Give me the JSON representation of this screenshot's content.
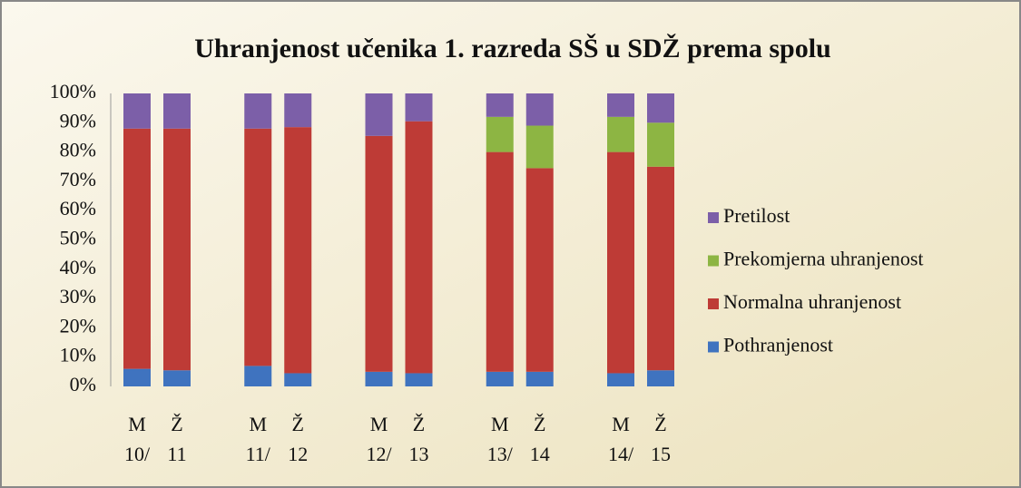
{
  "chart_data": {
    "type": "stacked_bar",
    "title": "Uhranjenost učenika 1. razreda SŠ u SDŽ prema spolu",
    "categories": [
      "M",
      "Ž",
      "M",
      "Ž",
      "M",
      "Ž",
      "M",
      "Ž",
      "M",
      "Ž"
    ],
    "groups": [
      [
        "10/",
        "11"
      ],
      [
        "11/",
        "12"
      ],
      [
        "12/",
        "13"
      ],
      [
        "13/",
        "14"
      ],
      [
        "14/",
        "15"
      ]
    ],
    "series": [
      {
        "name": "Pothranjenost",
        "color": "#3f73bf",
        "values": [
          6,
          5.5,
          7,
          4.5,
          5,
          4.5,
          5,
          5,
          4.5,
          5.5
        ]
      },
      {
        "name": "Normalna uhranjenost",
        "color": "#be3b36",
        "values": [
          82,
          82.5,
          81,
          84,
          80.5,
          86,
          75,
          69.5,
          75.5,
          69.5
        ]
      },
      {
        "name": "Prekomjerna uhranjenost",
        "color": "#8db543",
        "values": [
          0,
          0,
          0,
          0,
          0,
          0,
          12,
          14.5,
          12,
          15
        ]
      },
      {
        "name": "Pretilost",
        "color": "#7c5fa8",
        "values": [
          12,
          12,
          12,
          11.5,
          14.5,
          9.5,
          8,
          11,
          8,
          10
        ]
      }
    ],
    "ylim": [
      0,
      100
    ],
    "yticks": [
      {
        "value": 0,
        "label": "0%"
      },
      {
        "value": 10,
        "label": "10%"
      },
      {
        "value": 20,
        "label": "20%"
      },
      {
        "value": 30,
        "label": "30%"
      },
      {
        "value": 40,
        "label": "40%"
      },
      {
        "value": 50,
        "label": "50%"
      },
      {
        "value": 60,
        "label": "60%"
      },
      {
        "value": 70,
        "label": "70%"
      },
      {
        "value": 80,
        "label": "80%"
      },
      {
        "value": 90,
        "label": "90%"
      },
      {
        "value": 100,
        "label": "100%"
      }
    ],
    "legend": "right"
  }
}
